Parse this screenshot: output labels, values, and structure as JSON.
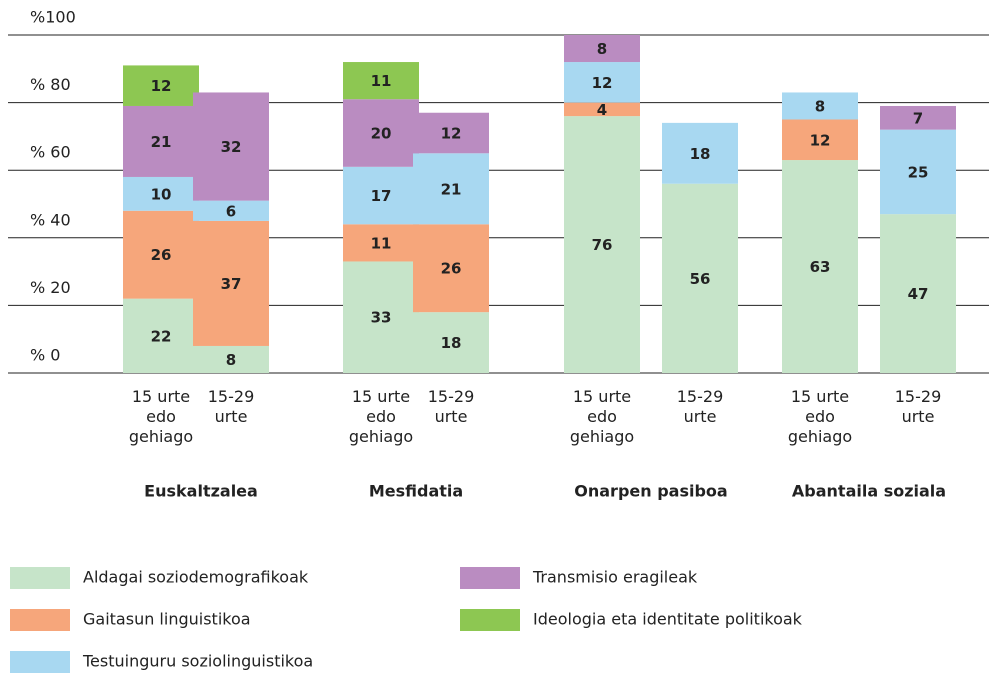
{
  "chart_data": {
    "type": "stacked_bar",
    "categories": [
      "15 urte edo gehiago",
      "15-29 urte",
      "15 urte edo gehiago",
      "15-29 urte",
      "15 urte edo gehiago",
      "15-29 urte",
      "15 urte edo gehiago",
      "15-29 urte"
    ],
    "groups": [
      "Euskaltzalea",
      "Mesfidatia",
      "Onarpen pasiboa",
      "Abantaila soziala"
    ],
    "series": [
      {
        "name": "Aldagai soziodemografikoak",
        "color": "#c6e4c9",
        "values": [
          22,
          8,
          33,
          18,
          76,
          56,
          63,
          47
        ]
      },
      {
        "name": "Gaitasun linguistikoa",
        "color": "#f6a67b",
        "values": [
          26,
          37,
          11,
          26,
          4,
          null,
          12,
          null
        ]
      },
      {
        "name": "Testuinguru soziolinguistikoa",
        "color": "#a8d8f1",
        "values": [
          10,
          6,
          17,
          21,
          12,
          18,
          8,
          25
        ]
      },
      {
        "name": "Transmisio eragileak",
        "color": "#ba8cc1",
        "values": [
          21,
          32,
          20,
          12,
          8,
          null,
          null,
          7
        ]
      },
      {
        "name": "Ideologia eta identitate politikoak",
        "color": "#8dc752",
        "values": [
          12,
          null,
          11,
          null,
          null,
          null,
          null,
          null
        ]
      }
    ],
    "ylim": [
      0,
      100
    ],
    "yticks": [
      {
        "value": 0,
        "label": "% 0"
      },
      {
        "value": 20,
        "label": "% 20"
      },
      {
        "value": 40,
        "label": "% 40"
      },
      {
        "value": 60,
        "label": "% 60"
      },
      {
        "value": 80,
        "label": "% 80"
      },
      {
        "value": 100,
        "label": "%100"
      }
    ],
    "grid": true
  }
}
